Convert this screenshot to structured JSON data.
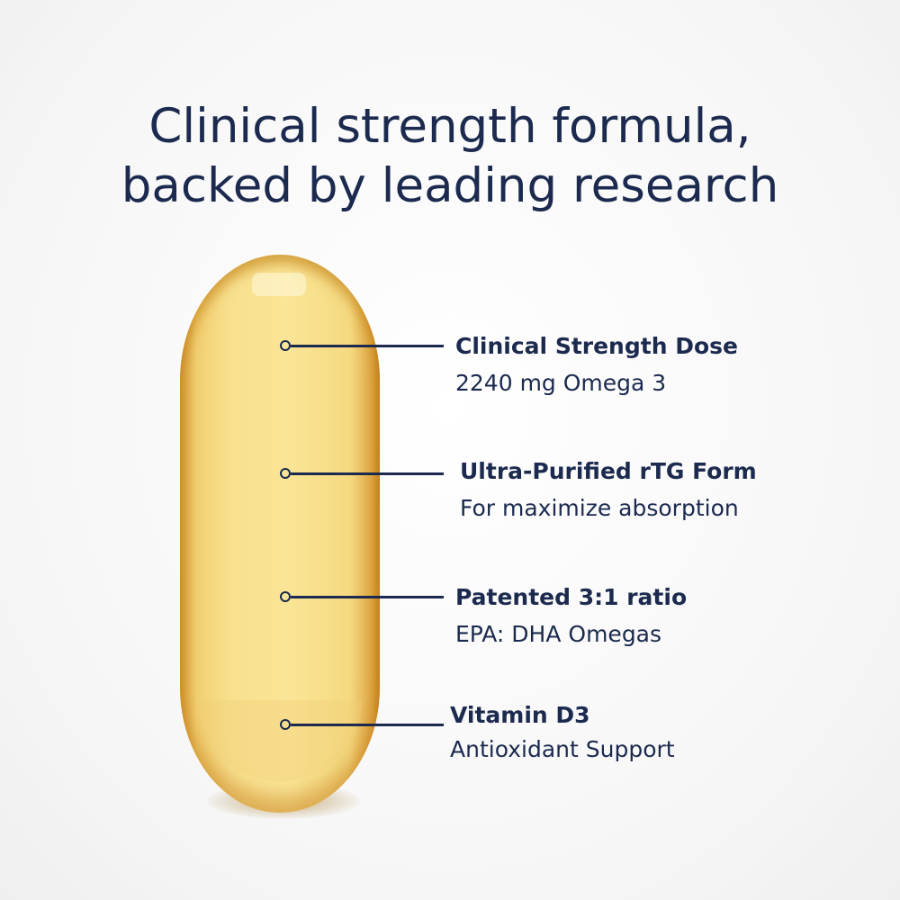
{
  "headline": {
    "line1": "Clinical strength formula,",
    "line2": "backed by leading research"
  },
  "colors": {
    "text": "#1b2a4e",
    "capsule": "#f8e08e"
  },
  "features": [
    {
      "title": "Clinical Strength Dose",
      "subtitle": "2240 mg Omega 3"
    },
    {
      "title": "Ultra-Purified rTG Form",
      "subtitle": "For maximize absorption"
    },
    {
      "title": "Patented 3:1 ratio",
      "subtitle": "EPA: DHA Omegas"
    },
    {
      "title": "Vitamin D3",
      "subtitle": "Antioxidant Support"
    }
  ]
}
